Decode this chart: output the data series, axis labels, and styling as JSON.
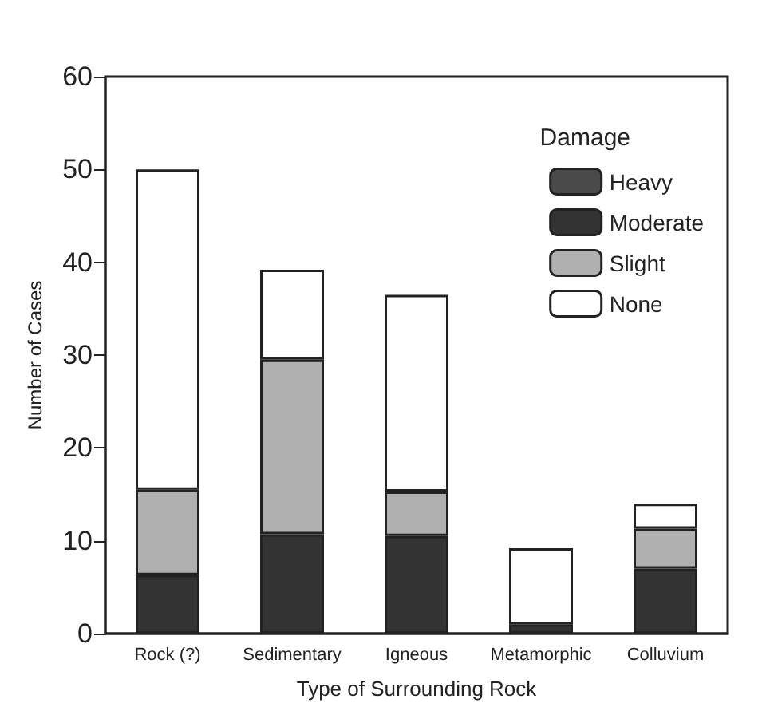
{
  "chart_data": {
    "type": "bar",
    "stacked": true,
    "xlabel": "Type of Surrounding Rock",
    "ylabel": "Number of Cases",
    "legend_title": "Damage",
    "legend": "top right",
    "categories": [
      "Rock (?)",
      "Sedimentary",
      "Igneous",
      "Metamorphic",
      "Colluvium"
    ],
    "series": [
      {
        "name": "Heavy",
        "color": "#4a4a4a",
        "values": [
          null,
          null,
          null,
          null,
          null
        ]
      },
      {
        "name": "Moderate",
        "color": "#333333",
        "values": [
          6.3,
          10.7,
          10.5,
          1,
          7
        ]
      },
      {
        "name": "Slight",
        "color": "#b0b0b0",
        "values": [
          9.2,
          18.8,
          4.8,
          null,
          4.3
        ]
      },
      {
        "name": "None",
        "color": "#ffffff",
        "values": [
          34.5,
          9.7,
          21.2,
          8.2,
          2.7
        ]
      }
    ],
    "ylim": [
      0,
      60
    ],
    "yticks": [
      0,
      10,
      20,
      30,
      40,
      50,
      60
    ],
    "grid": false
  }
}
